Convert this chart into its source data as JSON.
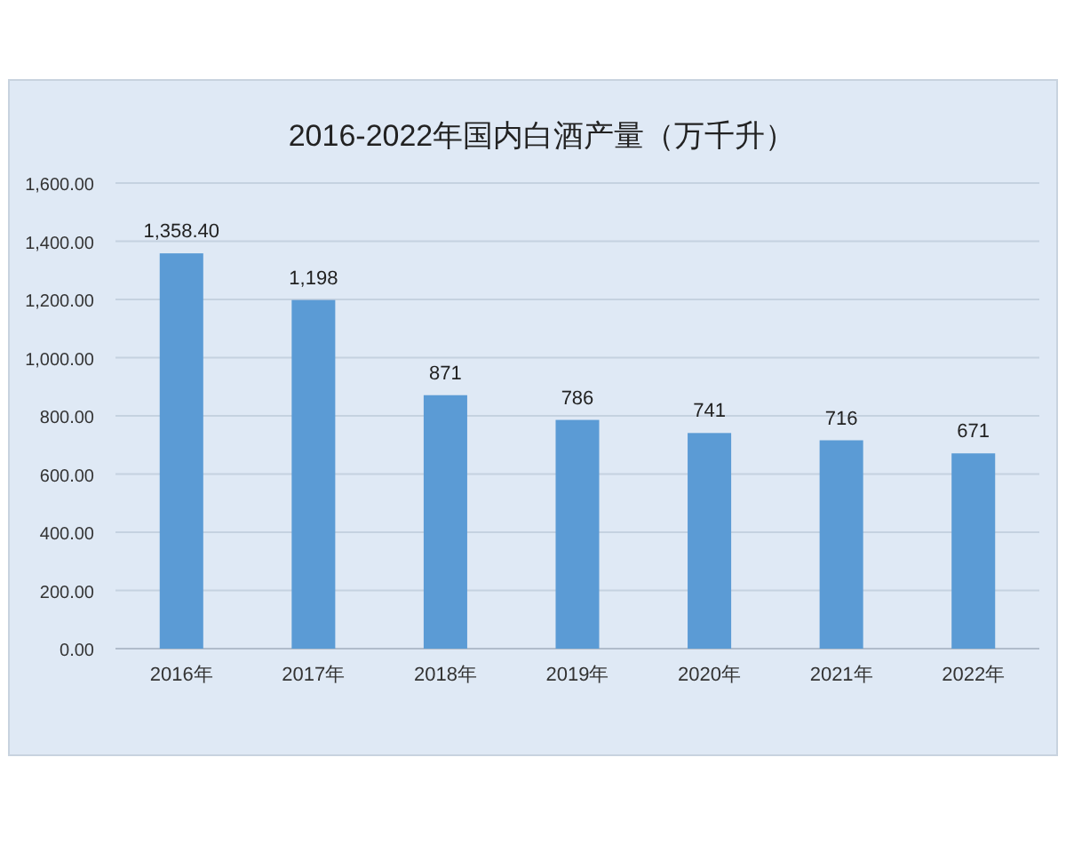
{
  "chart_data": {
    "type": "bar",
    "title": "2016-2022年国内白酒产量（万千升）",
    "categories": [
      "2016年",
      "2017年",
      "2018年",
      "2019年",
      "2020年",
      "2021年",
      "2022年"
    ],
    "values": [
      1358.4,
      1198,
      871,
      786,
      741,
      716,
      671
    ],
    "value_labels": [
      "1,358.40",
      "1,198",
      "871",
      "786",
      "741",
      "716",
      "671"
    ],
    "color": "#5b9bd5",
    "ylim": [
      0,
      1600
    ],
    "yticks": [
      {
        "value": 0,
        "label": "0.00"
      },
      {
        "value": 200,
        "label": "200.00"
      },
      {
        "value": 400,
        "label": "400.00"
      },
      {
        "value": 600,
        "label": "600.00"
      },
      {
        "value": 800,
        "label": "800.00"
      },
      {
        "value": 1000,
        "label": "1,000.00"
      },
      {
        "value": 1200,
        "label": "1,200.00"
      },
      {
        "value": 1400,
        "label": "1,400.00"
      },
      {
        "value": 1600,
        "label": "1,600.00"
      }
    ],
    "grid": "y"
  }
}
